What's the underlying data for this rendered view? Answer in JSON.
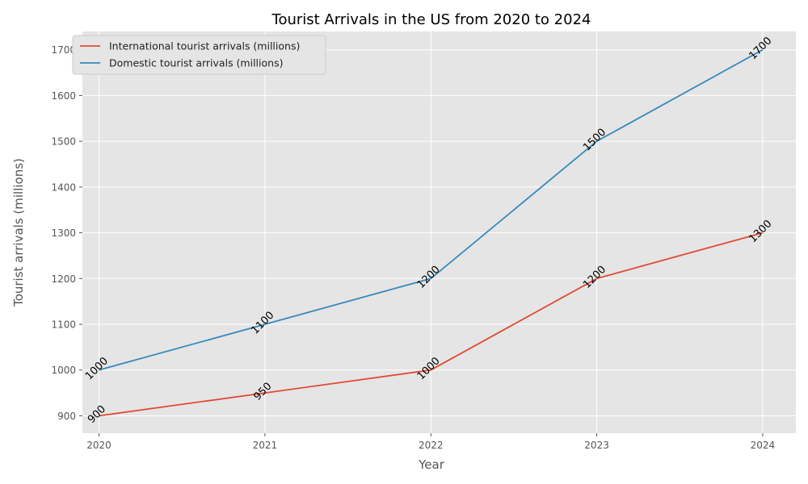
{
  "chart_data": {
    "type": "line",
    "title": "Tourist Arrivals in the US from 2020 to 2024",
    "xlabel": "Year",
    "ylabel": "Tourist arrivals (millions)",
    "x": [
      2020,
      2021,
      2022,
      2023,
      2024
    ],
    "x_tick_labels": [
      "2020",
      "2021",
      "2022",
      "2023",
      "2024"
    ],
    "y_ticks": [
      900,
      1000,
      1100,
      1200,
      1300,
      1400,
      1500,
      1600,
      1700
    ],
    "y_tick_labels": [
      "900",
      "1000",
      "1100",
      "1200",
      "1300",
      "1400",
      "1500",
      "1600",
      "1700"
    ],
    "ylim": [
      862,
      1740
    ],
    "xlim": [
      2019.9,
      2024.2
    ],
    "grid": true,
    "legend_position": "upper-left",
    "series": [
      {
        "name": "International tourist arrivals (millions)",
        "color": "#E24A33",
        "values": [
          900,
          950,
          1000,
          1200,
          1300
        ],
        "labels": [
          "900",
          "950",
          "1000",
          "1200",
          "1300"
        ]
      },
      {
        "name": "Domestic tourist arrivals (millions)",
        "color": "#348ABD",
        "values": [
          1000,
          1100,
          1200,
          1500,
          1700
        ],
        "labels": [
          "1000",
          "1100",
          "1200",
          "1500",
          "1700"
        ]
      }
    ],
    "style": {
      "background": "#E5E5E5",
      "grid_color": "#FFFFFF"
    }
  }
}
